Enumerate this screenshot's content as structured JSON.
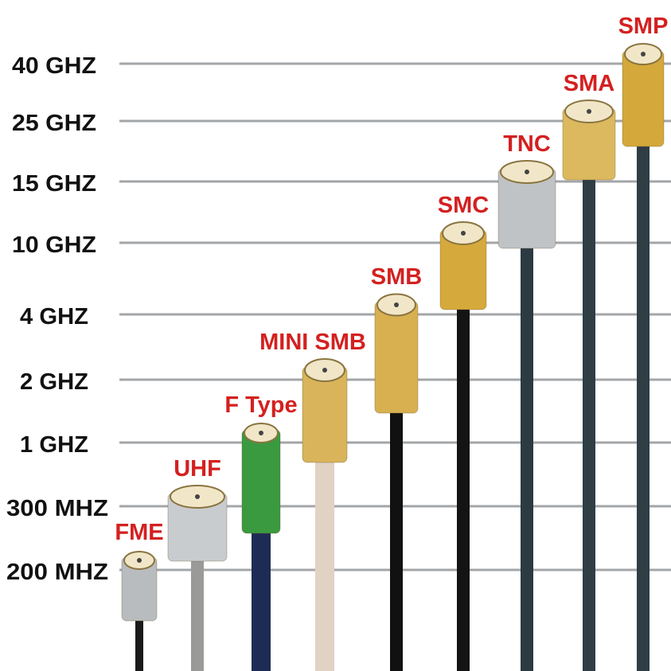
{
  "chart_data": {
    "type": "bar",
    "title": "",
    "xlabel": "",
    "ylabel": "",
    "y_scale": "categorical frequency levels",
    "grid": true,
    "y_ticks": [
      "200 MHZ",
      "300 MHZ",
      "1 GHZ",
      "2 GHZ",
      "4 GHZ",
      "10 GHZ",
      "15 GHZ",
      "25 GHZ",
      "40 GHZ"
    ],
    "categories": [
      "FME",
      "UHF",
      "F Type",
      "MINI SMB",
      "SMB",
      "SMC",
      "TNC",
      "SMA",
      "SMP"
    ],
    "values": [
      "200 MHZ",
      "300 MHZ",
      "1 GHZ",
      "2 GHZ",
      "4 GHZ",
      "10 GHZ",
      "15 GHZ",
      "25 GHZ",
      "40 GHZ"
    ],
    "connector_colors": {
      "FME": "#b9bcbf",
      "UHF": "#c9cccf",
      "F Type": "#3a9a3f",
      "MINI SMB": "#d9b45a",
      "SMB": "#d8b050",
      "SMC": "#d6a93c",
      "TNC": "#bfc3c6",
      "SMA": "#dcb85e",
      "SMP": "#d4a83a"
    },
    "cable_colors": {
      "FME": "#1a1a1a",
      "UHF": "#9a9a98",
      "F Type": "#1e2c55",
      "MINI SMB": "#e2d2c4",
      "SMB": "#111111",
      "SMC": "#141414",
      "TNC": "#2c3a42",
      "SMA": "#2f3d45",
      "SMP": "#2f3d45"
    },
    "label_color": "#d42020",
    "grid_color": "#a3a6a8"
  }
}
